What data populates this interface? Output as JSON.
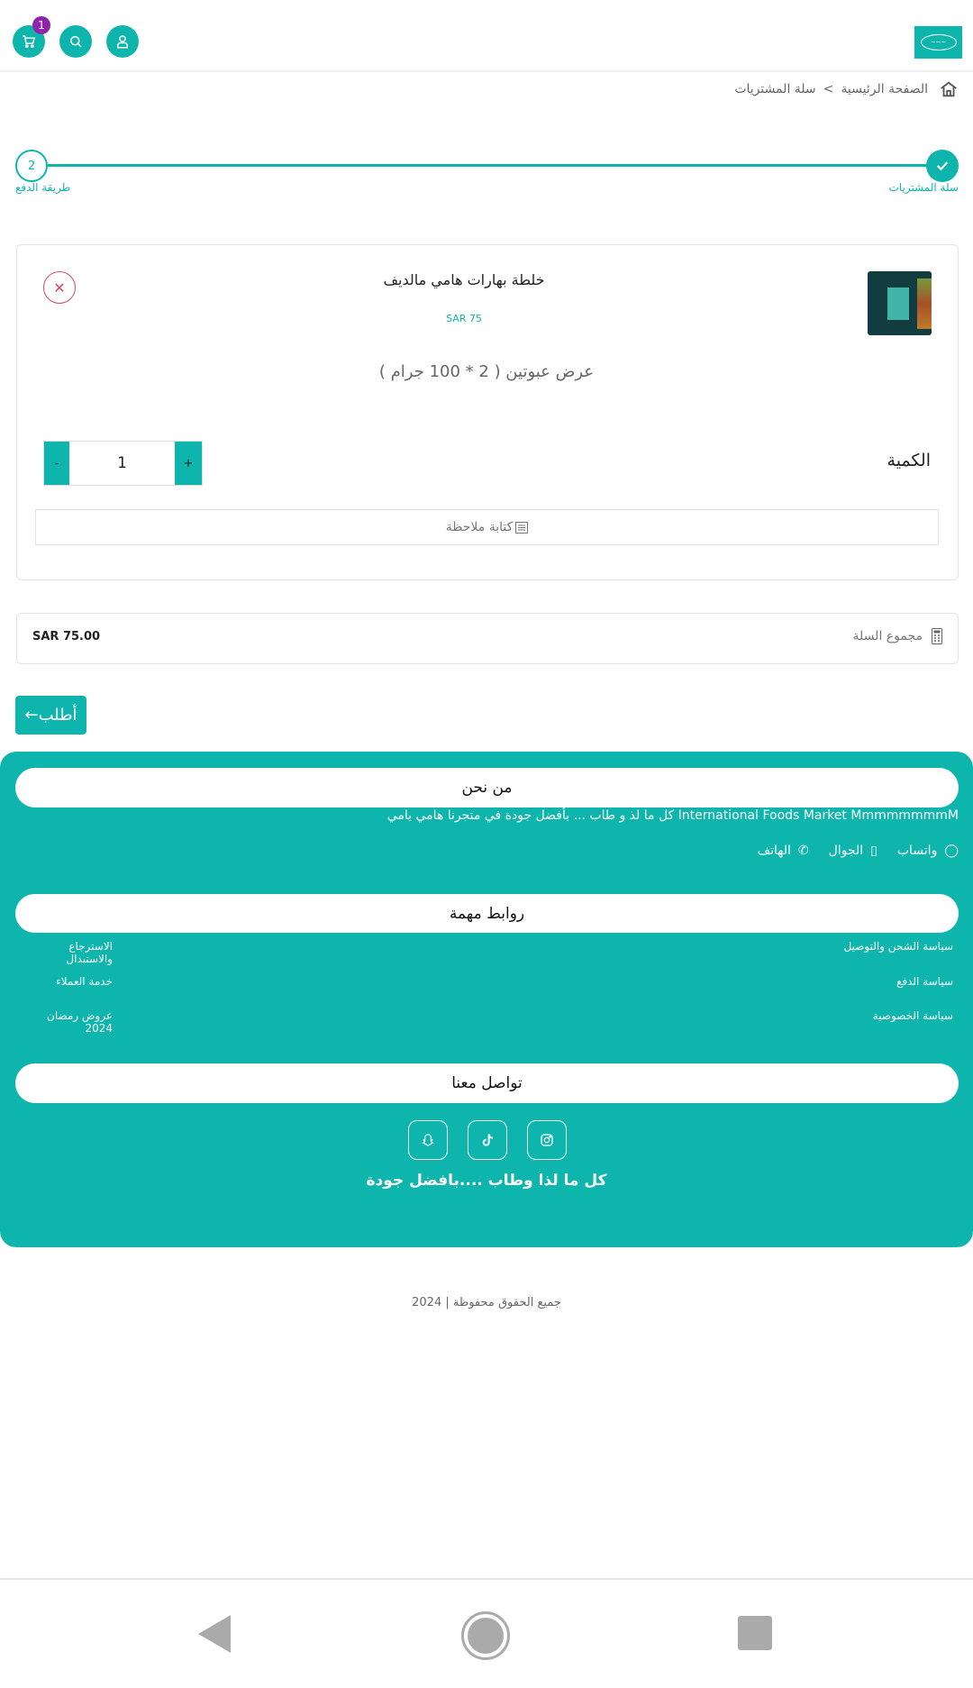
{
  "header": {
    "cart_count": "1",
    "logo": "هامي"
  },
  "breadcrumb": {
    "home": "الصفحة الرئيسية",
    "separator": ">",
    "current": "سلة المشتريات"
  },
  "stepper": {
    "step1_label": "سلة المشتريات",
    "step2_number": "2",
    "step2_label": "طريقة الدفع"
  },
  "cart_item": {
    "name": "خلطة بهارات هامي مالديف",
    "price": "SAR 75",
    "variant": "عرض عبوتين ( 2 * 100 جرام )",
    "quantity_label": "الكمية",
    "quantity": "1",
    "minus": "-",
    "plus": "+",
    "note_label": "كتابة ملاحظة"
  },
  "total": {
    "label": "مجموع السلة",
    "value": "SAR 75.00"
  },
  "order_button": "أطلب",
  "footer": {
    "about_title": "من نحن",
    "about_text": "International Foods Market MmmmmmmmM كل ما لذ و طاب ... بأفضل جودة في متجرنا هامي يامي",
    "contacts": [
      "واتساب",
      "الجوال",
      "الهاتف"
    ],
    "links_title": "روابط مهمة",
    "links_right": [
      "سياسة الشحن والتوصيل",
      "سياسة الدفع",
      "سياسة الخصوصية"
    ],
    "links_left": [
      "الاسترجاع والاستبدال",
      "خدمة العملاء",
      "عروض رمضان 2024"
    ],
    "contact_title": "تواصل معنا",
    "social": [
      "instagram-icon",
      "tiktok-icon",
      "snapchat-icon"
    ],
    "tagline": "كل ما لذا وطاب ....بافضل جودة"
  },
  "copyright": "جميع الحقوق محفوظة | 2024",
  "colors": {
    "accent": "#0db5ad",
    "badge": "#8e24aa",
    "remove": "#d9485f"
  }
}
